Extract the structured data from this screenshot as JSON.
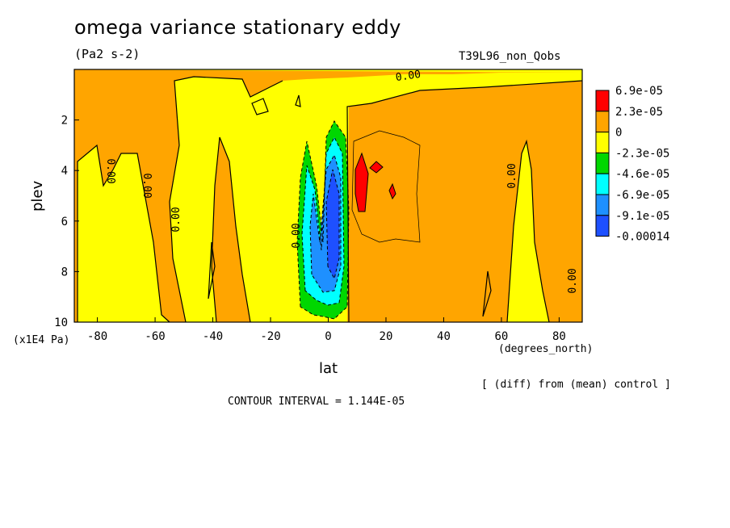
{
  "chart_data": {
    "type": "heatmap",
    "title": "omega variance stationary eddy",
    "units": "(Pa2 s-2)",
    "run_label": "T39L96_non_Qobs",
    "xlabel": "lat",
    "x_units": "(degrees_north)",
    "ylabel": "plev",
    "y_units": "(x1E4 Pa)",
    "footer_diff": "[ (diff) from (mean) control ]",
    "contour_interval": "CONTOUR INTERVAL = 1.144E-05",
    "xlim": [
      -88,
      88
    ],
    "ylim": [
      0,
      10
    ],
    "y_inverted": true,
    "xticks": [
      -80,
      -60,
      -40,
      -20,
      0,
      20,
      40,
      60,
      80
    ],
    "yticks": [
      2,
      4,
      6,
      8,
      10
    ],
    "contour_label": "0.00",
    "colorbar": {
      "labels": [
        "6.9e-05",
        "2.3e-05",
        "0",
        "-2.3e-05",
        "-4.6e-05",
        "-6.9e-05",
        "-9.1e-05",
        "-0.00014"
      ],
      "colors": [
        "#ff0000",
        "#ffa500",
        "#ffff00",
        "#00d700",
        "#00ffff",
        "#1e90ff",
        "#1e50ff"
      ]
    }
  }
}
